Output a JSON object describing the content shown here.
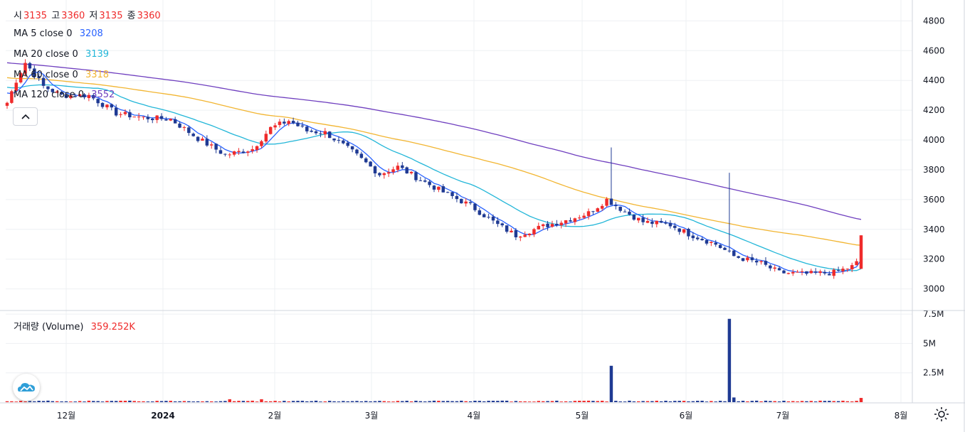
{
  "ohlc": {
    "open_label": "시",
    "open": "3135",
    "high_label": "고",
    "high": "3360",
    "low_label": "저",
    "low": "3135",
    "close_label": "종",
    "close": "3360"
  },
  "indicators": [
    {
      "name": "MA 5 close 0",
      "value": "3208",
      "color": "#2962ff"
    },
    {
      "name": "MA 20 close 0",
      "value": "3139",
      "color": "#22b6d8"
    },
    {
      "name": "MA 60 close 0",
      "value": "3318",
      "color": "#f2b531"
    },
    {
      "name": "MA 120 close 0",
      "value": "3552",
      "color": "#6f3fbf"
    }
  ],
  "volume_legend": {
    "label": "거래량 (Volume)",
    "value": "359.252K"
  },
  "colors": {
    "up": "#ef2b2b",
    "down": "#1f3a93",
    "grid": "#eef0f3",
    "text": "#131722"
  },
  "icons": [
    "chevron-up-icon",
    "cloud-logo-icon",
    "gear-icon"
  ],
  "chart_data": {
    "type": "candlestick",
    "title": "",
    "price_axis_ticks": [
      3000,
      3200,
      3400,
      3600,
      3800,
      4000,
      4200,
      4400,
      4600,
      4800
    ],
    "price_range": [
      2860,
      4940
    ],
    "volume_axis_ticks": [
      "2.5M",
      "5M",
      "7.5M"
    ],
    "volume_range": [
      0,
      7.75
    ],
    "x_axis_labels": [
      "12월",
      "2024",
      "2월",
      "3월",
      "4월",
      "5월",
      "6월",
      "7월",
      "8월"
    ],
    "grid": true,
    "series": [
      {
        "name": "MA 5 close 0",
        "last": 3208
      },
      {
        "name": "MA 20 close 0",
        "last": 3139
      },
      {
        "name": "MA 60 close 0",
        "last": 3318
      },
      {
        "name": "MA 120 close 0",
        "last": 3552
      }
    ],
    "price_keypoints": [
      [
        0,
        4250
      ],
      [
        2,
        4400
      ],
      [
        4,
        4520
      ],
      [
        6,
        4440
      ],
      [
        8,
        4360
      ],
      [
        12,
        4300
      ],
      [
        18,
        4300
      ],
      [
        24,
        4180
      ],
      [
        30,
        4150
      ],
      [
        36,
        4140
      ],
      [
        42,
        4010
      ],
      [
        48,
        3900
      ],
      [
        54,
        3940
      ],
      [
        58,
        4080
      ],
      [
        62,
        4130
      ],
      [
        66,
        4060
      ],
      [
        70,
        4050
      ],
      [
        76,
        3920
      ],
      [
        82,
        3770
      ],
      [
        86,
        3820
      ],
      [
        90,
        3750
      ],
      [
        96,
        3650
      ],
      [
        102,
        3560
      ],
      [
        108,
        3430
      ],
      [
        112,
        3360
      ],
      [
        118,
        3420
      ],
      [
        124,
        3470
      ],
      [
        128,
        3510
      ],
      [
        132,
        3600
      ],
      [
        136,
        3520
      ],
      [
        140,
        3450
      ],
      [
        146,
        3430
      ],
      [
        150,
        3370
      ],
      [
        156,
        3300
      ],
      [
        160,
        3220
      ],
      [
        166,
        3170
      ],
      [
        170,
        3110
      ],
      [
        176,
        3100
      ],
      [
        182,
        3110
      ],
      [
        186,
        3150
      ],
      [
        188,
        3200
      ]
    ],
    "volume_spikes": [
      {
        "label": "5월",
        "value_m": 3.1
      },
      {
        "label": "6월",
        "value_m": 7.1
      }
    ],
    "last_volume": "359.252K"
  }
}
